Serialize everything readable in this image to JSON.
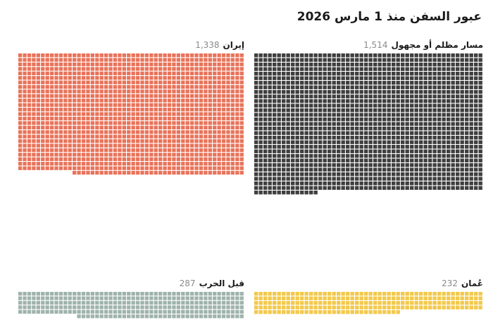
{
  "title": "عبور السفن منذ 1 مارس 2026",
  "chart_data": {
    "type": "waffle",
    "title": "عبور السفن منذ 1 مارس 2026",
    "unit": "ship transits (one square = one ship)",
    "series": [
      {
        "name": "مسار مظلم أو مجهول",
        "value": 1514,
        "value_label": "1,514",
        "color": "#3f3f3f"
      },
      {
        "name": "إيران",
        "value": 1338,
        "value_label": "1,338",
        "color": "#e8735a"
      },
      {
        "name": "عُمان",
        "value": 232,
        "value_label": "232",
        "color": "#f2c94c"
      },
      {
        "name": "قبل الحرب",
        "value": 287,
        "value_label": "287",
        "color": "#9fb3ac"
      }
    ]
  }
}
